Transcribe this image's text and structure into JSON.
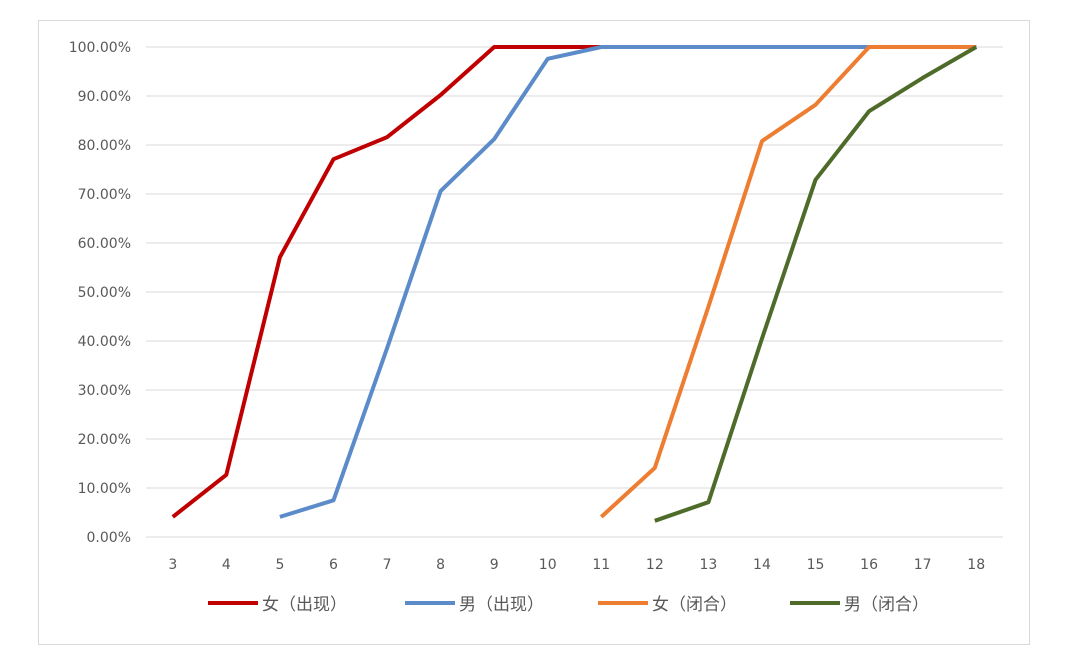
{
  "chart_data": {
    "type": "line",
    "x": [
      3,
      4,
      5,
      6,
      7,
      8,
      9,
      10,
      11,
      12,
      13,
      14,
      15,
      16,
      17,
      18
    ],
    "ylim": [
      0,
      100
    ],
    "yticks": [
      "0.00%",
      "10.00%",
      "20.00%",
      "30.00%",
      "40.00%",
      "50.00%",
      "60.00%",
      "70.00%",
      "80.00%",
      "90.00%",
      "100.00%"
    ],
    "grid": true,
    "legend": "bottom",
    "series": [
      {
        "name": "女（出现）",
        "color": "#c00000",
        "values": [
          4.1,
          12.7,
          57.1,
          77.1,
          81.6,
          90.2,
          100,
          100,
          100,
          100,
          100,
          100,
          100,
          100,
          100,
          100
        ]
      },
      {
        "name": "男（出现）",
        "color": "#5b8bc9",
        "values": [
          null,
          null,
          4.1,
          7.5,
          38.5,
          70.6,
          81.2,
          97.6,
          100,
          100,
          100,
          100,
          100,
          100,
          100,
          100
        ]
      },
      {
        "name": "女（闭合）",
        "color": "#ed7d31",
        "values": [
          null,
          null,
          null,
          null,
          null,
          null,
          null,
          null,
          4.1,
          14.1,
          47,
          80.8,
          88.2,
          100,
          100,
          100
        ]
      },
      {
        "name": "男（闭合）",
        "color": "#4e6b2a",
        "values": [
          null,
          null,
          null,
          null,
          null,
          null,
          null,
          null,
          null,
          3.3,
          7.1,
          40.5,
          72.9,
          86.9,
          93.7,
          100
        ]
      }
    ]
  }
}
